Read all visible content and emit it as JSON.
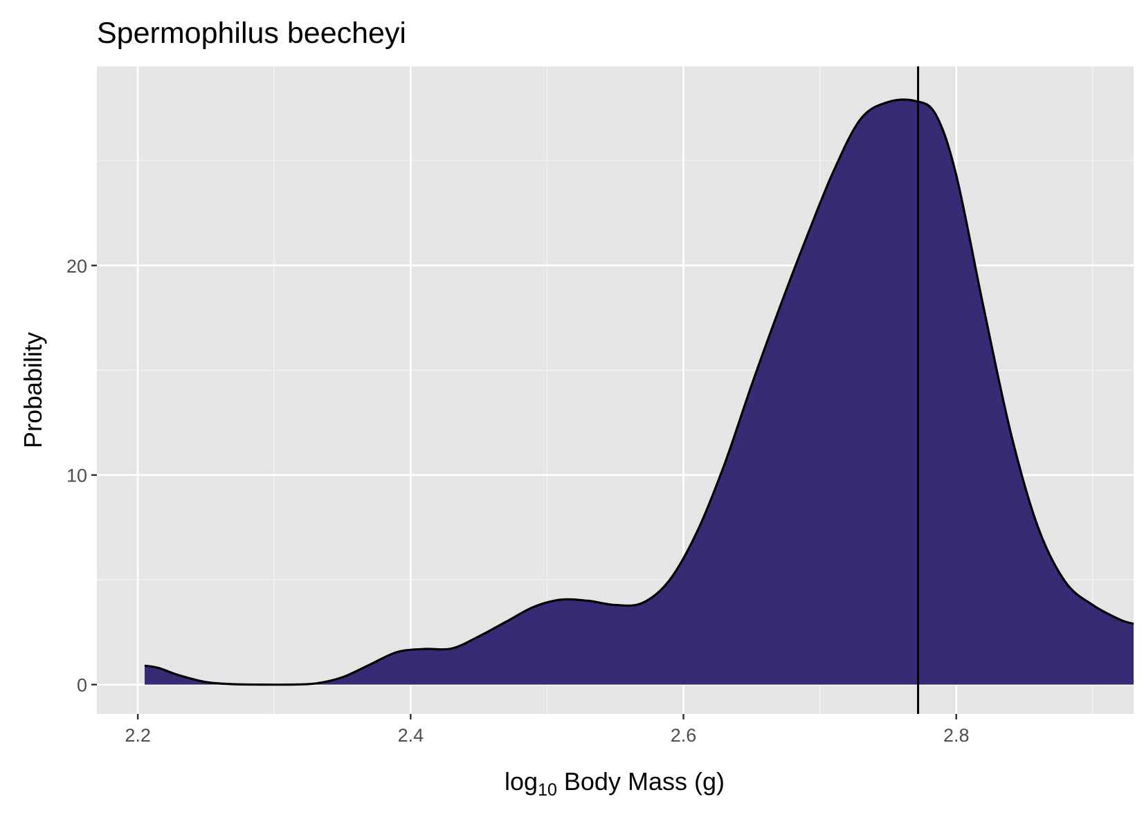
{
  "chart_data": {
    "type": "area",
    "title": "Spermophilus beecheyi",
    "xlabel": {
      "prefix": "log",
      "subscript": "10",
      "suffix": " Body Mass (g)"
    },
    "ylabel": "Probability",
    "xlim": [
      2.17,
      2.93
    ],
    "ylim": [
      -1.4,
      29.5
    ],
    "x_ticks": [
      2.2,
      2.4,
      2.6,
      2.8
    ],
    "x_tick_labels": [
      "2.2",
      "2.4",
      "2.6",
      "2.8"
    ],
    "x_minor_ticks": [
      2.3,
      2.5,
      2.7,
      2.9
    ],
    "y_ticks": [
      0,
      10,
      20
    ],
    "y_tick_labels": [
      "0",
      "10",
      "20"
    ],
    "y_minor_ticks": [
      5,
      15,
      25
    ],
    "grid": true,
    "vline_x": 2.772,
    "series": [
      {
        "fill": "#382b76",
        "stroke": "#000000",
        "x": [
          2.205,
          2.215,
          2.23,
          2.25,
          2.27,
          2.29,
          2.31,
          2.33,
          2.35,
          2.37,
          2.39,
          2.41,
          2.43,
          2.45,
          2.47,
          2.49,
          2.51,
          2.53,
          2.55,
          2.57,
          2.59,
          2.61,
          2.63,
          2.65,
          2.67,
          2.69,
          2.71,
          2.73,
          2.75,
          2.77,
          2.785,
          2.8,
          2.82,
          2.84,
          2.86,
          2.88,
          2.9,
          2.92,
          2.93
        ],
        "y": [
          0.9,
          0.8,
          0.45,
          0.12,
          0.02,
          0.0,
          0.0,
          0.05,
          0.35,
          0.95,
          1.55,
          1.7,
          1.72,
          2.3,
          3.0,
          3.7,
          4.05,
          4.0,
          3.8,
          3.9,
          5.0,
          7.3,
          10.5,
          14.3,
          17.9,
          21.3,
          24.5,
          27.0,
          27.8,
          27.85,
          27.2,
          24.3,
          18.0,
          12.0,
          7.5,
          4.9,
          3.8,
          3.1,
          2.9
        ]
      }
    ]
  }
}
